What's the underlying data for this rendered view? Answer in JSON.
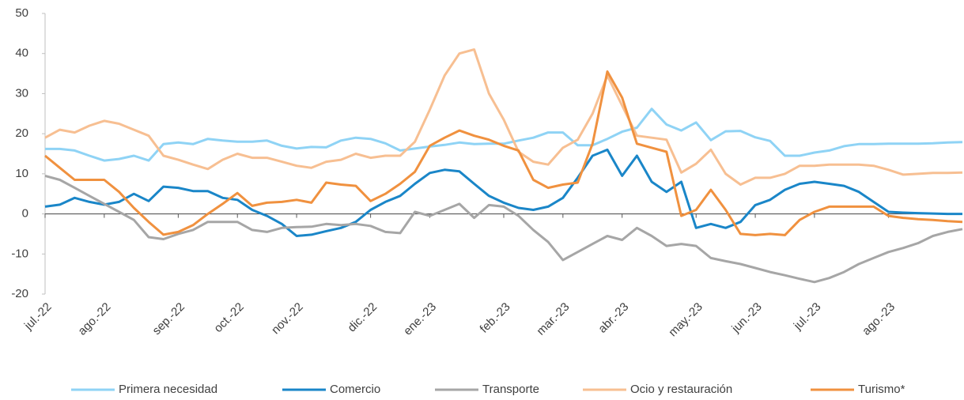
{
  "chart_data": {
    "type": "line",
    "categories": [
      "jul.-22",
      null,
      null,
      null,
      "ago.-22",
      null,
      null,
      null,
      null,
      "sep.-22",
      null,
      null,
      null,
      "oct.-22",
      null,
      null,
      null,
      "nov.-22",
      null,
      null,
      null,
      null,
      "dic.-22",
      null,
      null,
      null,
      "ene.-23",
      null,
      null,
      null,
      null,
      "feb.-23",
      null,
      null,
      null,
      "mar.-23",
      null,
      null,
      null,
      "abr.-23",
      null,
      null,
      null,
      null,
      "may.-23",
      null,
      null,
      null,
      "jun.-23",
      null,
      null,
      null,
      "jul.-23",
      null,
      null,
      null,
      null,
      "ago.-23",
      null,
      null,
      null,
      null,
      null
    ],
    "series": [
      {
        "name": "Primera necesidad",
        "color": "#8fd3f5",
        "values": [
          16.2,
          16.2,
          15.8,
          14.5,
          13.3,
          13.7,
          14.5,
          13.3,
          17.4,
          17.8,
          17.4,
          18.7,
          18.3,
          18,
          18,
          18.3,
          17,
          16.3,
          16.7,
          16.6,
          18.3,
          19,
          18.7,
          17.6,
          15.8,
          16.3,
          16.8,
          17.2,
          17.8,
          17.4,
          17.5,
          17.5,
          18.3,
          19,
          20.3,
          20.3,
          17.1,
          17.1,
          18.7,
          20.5,
          21.5,
          26.2,
          22.3,
          20.8,
          22.8,
          18.4,
          20.6,
          20.7,
          19.1,
          18.2,
          14.5,
          14.5,
          15.3,
          15.8,
          16.9,
          17.4,
          17.4,
          17.5,
          17.5,
          17.5,
          17.6,
          17.8,
          17.9
        ]
      },
      {
        "name": "Comercio",
        "color": "#1a86c8",
        "values": [
          1.8,
          2.3,
          4,
          3,
          2.3,
          3,
          5,
          3.2,
          6.8,
          6.5,
          5.7,
          5.7,
          4,
          3.5,
          1,
          -0.5,
          -2.5,
          -5.5,
          -5.2,
          -4.3,
          -3.5,
          -2,
          1,
          3,
          4.5,
          7.5,
          10.2,
          11,
          10.6,
          7.5,
          4.5,
          2.8,
          1.5,
          1,
          1.8,
          4,
          9,
          14.5,
          16,
          9.5,
          14.5,
          8,
          5.5,
          8,
          -3.5,
          -2.5,
          -3.5,
          -2,
          2.2,
          3.5,
          6,
          7.5,
          8,
          7.5,
          7,
          5.5,
          3,
          0.5,
          0.3,
          0.2,
          0.1,
          0,
          0
        ]
      },
      {
        "name": "Transporte",
        "color": "#a6a6a6",
        "values": [
          9.5,
          8.5,
          6.5,
          4.5,
          2.5,
          0.5,
          -1.5,
          -5.8,
          -6.3,
          -5,
          -4,
          -2,
          -2,
          -2,
          -4,
          -4.5,
          -3.5,
          -3.3,
          -3.2,
          -2.5,
          -2.8,
          -2.5,
          -3,
          -4.5,
          -4.8,
          0.5,
          -0.5,
          1,
          2.5,
          -1,
          2.2,
          1.8,
          -0.5,
          -4,
          -7,
          -11.5,
          -9.5,
          -7.5,
          -5.5,
          -6.5,
          -3.5,
          -5.5,
          -8,
          -7.5,
          -8,
          -11,
          -11.8,
          -12.5,
          -13.5,
          -14.5,
          -15.3,
          -16.2,
          -17,
          -16,
          -14.5,
          -12.5,
          -11,
          -9.5,
          -8.5,
          -7.3,
          -5.5,
          -4.5,
          -3.8
        ]
      },
      {
        "name": "Ocio y restauración",
        "color": "#f7bf92",
        "values": [
          19,
          21,
          20.3,
          22,
          23.2,
          22.5,
          21,
          19.5,
          14.5,
          13.5,
          12.3,
          11.2,
          13.5,
          15,
          14,
          14,
          13,
          12,
          11.5,
          13,
          13.5,
          15,
          14,
          14.5,
          14.5,
          18,
          26,
          34.5,
          40,
          41,
          30,
          23.5,
          15.5,
          13,
          12.3,
          16.5,
          18.5,
          25,
          34.5,
          27,
          19.5,
          19,
          18.5,
          10.3,
          12.5,
          16,
          10,
          7.3,
          9,
          9,
          10,
          12,
          12,
          12.3,
          12.3,
          12.3,
          12,
          11,
          9.8,
          10,
          10.2,
          10.2,
          10.3
        ]
      },
      {
        "name": "Turismo*",
        "color": "#f0913f",
        "values": [
          14.5,
          11.5,
          8.5,
          8.5,
          8.5,
          5.5,
          1.5,
          -2,
          -5.2,
          -4.5,
          -2.8,
          0,
          2.5,
          5.2,
          2,
          2.8,
          3,
          3.5,
          2.8,
          7.8,
          7.3,
          7,
          3.2,
          5,
          7.5,
          10.5,
          17,
          19,
          20.8,
          19.5,
          18.5,
          17,
          15.8,
          8.5,
          6.5,
          7.3,
          7.8,
          17.5,
          35.5,
          29,
          17.5,
          16.5,
          15.5,
          -0.5,
          1,
          6,
          1,
          -5,
          -5.3,
          -5,
          -5.3,
          -1.5,
          0.5,
          1.8,
          1.8,
          1.8,
          1.8,
          -0.5,
          -1,
          -1.3,
          -1.5,
          -1.8,
          -2
        ]
      }
    ],
    "ylim": [
      -20,
      50
    ],
    "yticks": [
      -20,
      -10,
      0,
      10,
      20,
      30,
      40,
      50
    ],
    "legend": "bottom"
  }
}
